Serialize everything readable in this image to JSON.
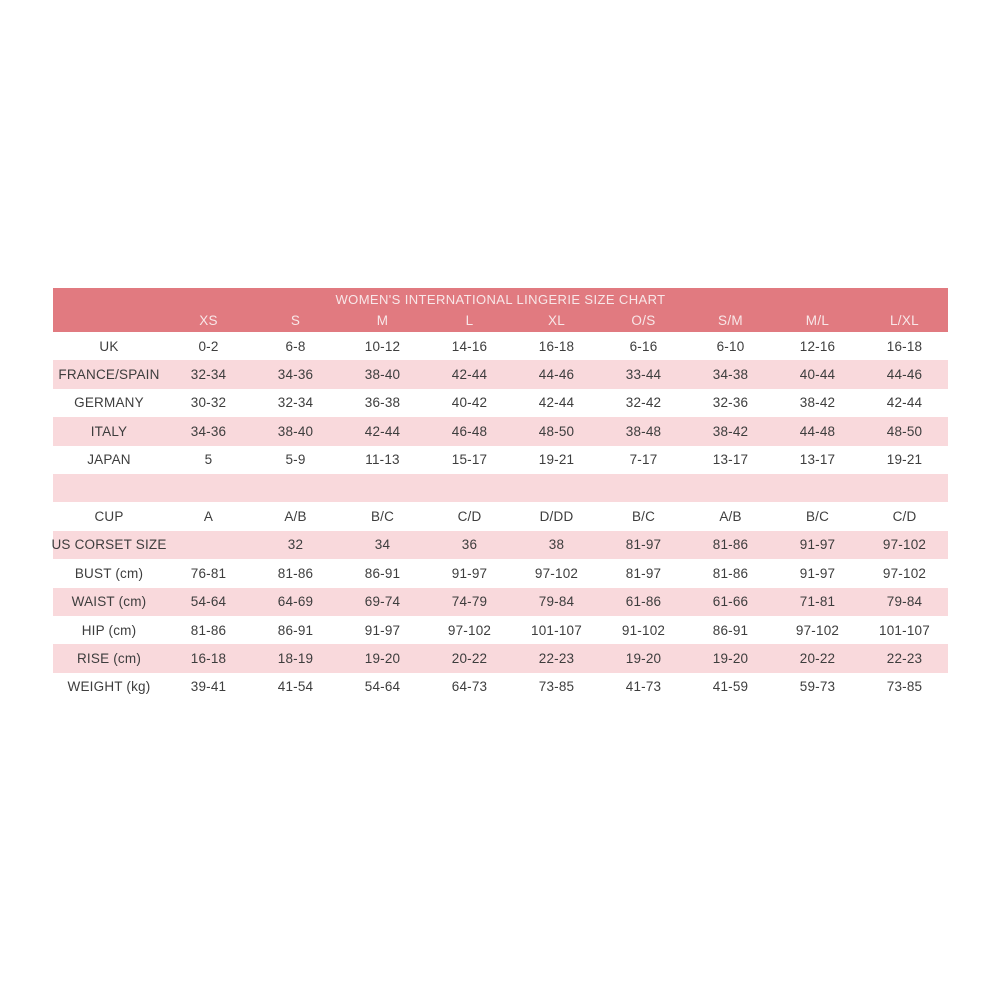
{
  "page": {
    "background": "#ffffff"
  },
  "chart_data": {
    "type": "table",
    "title": "WOMEN'S INTERNATIONAL LINGERIE SIZE CHART",
    "columns": [
      "",
      "XS",
      "S",
      "M",
      "L",
      "XL",
      "O/S",
      "S/M",
      "M/L",
      "L/XL"
    ],
    "rows": [
      {
        "label": "UK",
        "shaded": false,
        "values": [
          "0-2",
          "6-8",
          "10-12",
          "14-16",
          "16-18",
          "6-16",
          "6-10",
          "12-16",
          "16-18"
        ]
      },
      {
        "label": "FRANCE/SPAIN",
        "shaded": true,
        "values": [
          "32-34",
          "34-36",
          "38-40",
          "42-44",
          "44-46",
          "33-44",
          "34-38",
          "40-44",
          "44-46"
        ]
      },
      {
        "label": "GERMANY",
        "shaded": false,
        "values": [
          "30-32",
          "32-34",
          "36-38",
          "40-42",
          "42-44",
          "32-42",
          "32-36",
          "38-42",
          "42-44"
        ]
      },
      {
        "label": "ITALY",
        "shaded": true,
        "values": [
          "34-36",
          "38-40",
          "42-44",
          "46-48",
          "48-50",
          "38-48",
          "38-42",
          "44-48",
          "48-50"
        ]
      },
      {
        "label": "JAPAN",
        "shaded": false,
        "values": [
          "5",
          "5-9",
          "11-13",
          "15-17",
          "19-21",
          "7-17",
          "13-17",
          "13-17",
          "19-21"
        ]
      },
      {
        "label": "",
        "shaded": true,
        "values": [
          "",
          "",
          "",
          "",
          "",
          "",
          "",
          "",
          ""
        ]
      },
      {
        "label": "CUP",
        "shaded": false,
        "values": [
          "A",
          "A/B",
          "B/C",
          "C/D",
          "D/DD",
          "B/C",
          "A/B",
          "B/C",
          "C/D"
        ]
      },
      {
        "label": "US CORSET SIZE",
        "shaded": true,
        "values": [
          "",
          "32",
          "34",
          "36",
          "38",
          "81-97",
          "81-86",
          "91-97",
          "97-102"
        ]
      },
      {
        "label": "BUST (cm)",
        "shaded": false,
        "values": [
          "76-81",
          "81-86",
          "86-91",
          "91-97",
          "97-102",
          "81-97",
          "81-86",
          "91-97",
          "97-102"
        ]
      },
      {
        "label": "WAIST (cm)",
        "shaded": true,
        "values": [
          "54-64",
          "64-69",
          "69-74",
          "74-79",
          "79-84",
          "61-86",
          "61-66",
          "71-81",
          "79-84"
        ]
      },
      {
        "label": "HIP (cm)",
        "shaded": false,
        "values": [
          "81-86",
          "86-91",
          "91-97",
          "97-102",
          "101-107",
          "91-102",
          "86-91",
          "97-102",
          "101-107"
        ]
      },
      {
        "label": "RISE (cm)",
        "shaded": true,
        "values": [
          "16-18",
          "18-19",
          "19-20",
          "20-22",
          "22-23",
          "19-20",
          "19-20",
          "20-22",
          "22-23"
        ]
      },
      {
        "label": "WEIGHT (kg)",
        "shaded": false,
        "values": [
          "39-41",
          "41-54",
          "54-64",
          "64-73",
          "73-85",
          "41-73",
          "41-59",
          "59-73",
          "73-85"
        ]
      }
    ],
    "layout": {
      "legend": "none",
      "grid": "off",
      "striped": true
    },
    "colors": {
      "header_bg": "#e17a80",
      "header_text": "#f8e7e8",
      "shaded_row_bg": "#f9d9dc",
      "unshaded_row_bg": "#ffffff",
      "body_text": "#3d3d3d"
    }
  }
}
